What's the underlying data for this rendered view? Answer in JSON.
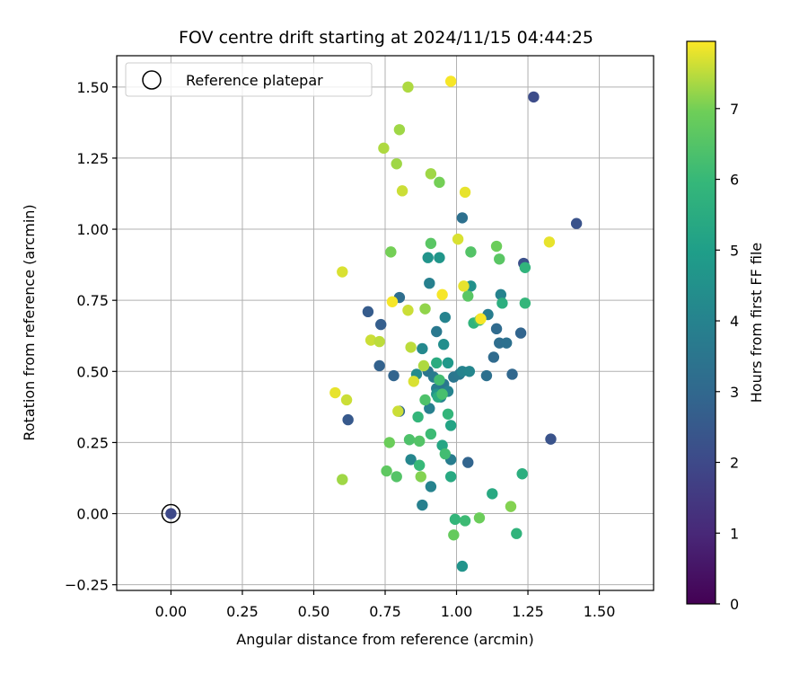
{
  "chart_data": {
    "type": "scatter",
    "title": "FOV centre drift starting at 2024/11/15 04:44:25",
    "xlabel": "Angular distance from reference (arcmin)",
    "ylabel": "Rotation from reference (arcmin)",
    "xlim": [
      -0.19,
      1.69
    ],
    "ylim": [
      -0.27,
      1.61
    ],
    "xticks": [
      0.0,
      0.25,
      0.5,
      0.75,
      1.0,
      1.25,
      1.5
    ],
    "xtick_labels": [
      "0.00",
      "0.25",
      "0.50",
      "0.75",
      "1.00",
      "1.25",
      "1.50"
    ],
    "yticks": [
      -0.25,
      0.0,
      0.25,
      0.5,
      0.75,
      1.0,
      1.25,
      1.5
    ],
    "ytick_labels": [
      "−0.25",
      "0.00",
      "0.25",
      "0.50",
      "0.75",
      "1.00",
      "1.25",
      "1.50"
    ],
    "grid": true,
    "legend": {
      "position": "top-left",
      "entries": [
        "Reference platepar"
      ]
    },
    "colormap": "viridis",
    "colorbar": {
      "label": "Hours from first FF file",
      "range": [
        0,
        7.95
      ],
      "ticks": [
        0,
        1,
        2,
        3,
        4,
        5,
        6,
        7
      ],
      "tick_labels": [
        "0",
        "1",
        "2",
        "3",
        "4",
        "5",
        "6",
        "7"
      ]
    },
    "reference_point": {
      "x": 0.0,
      "y": 0.0,
      "hours": 2.0
    },
    "points": [
      [
        1.27,
        1.465,
        2.1
      ],
      [
        1.42,
        1.02,
        2.3
      ],
      [
        1.235,
        0.88,
        2.2
      ],
      [
        1.33,
        0.262,
        2.3
      ],
      [
        0.62,
        0.33,
        2.5
      ],
      [
        0.69,
        0.71,
        2.6
      ],
      [
        0.735,
        0.665,
        2.7
      ],
      [
        0.73,
        0.52,
        2.8
      ],
      [
        0.78,
        0.485,
        2.9
      ],
      [
        0.8,
        0.36,
        3.0
      ],
      [
        0.8,
        0.76,
        3.2
      ],
      [
        1.02,
        1.04,
        3.3
      ],
      [
        1.14,
        0.65,
        3.1
      ],
      [
        1.15,
        0.6,
        3.2
      ],
      [
        1.175,
        0.6,
        3.3
      ],
      [
        1.195,
        0.49,
        3.0
      ],
      [
        1.225,
        0.635,
        2.9
      ],
      [
        1.13,
        0.55,
        3.1
      ],
      [
        1.105,
        0.485,
        3.3
      ],
      [
        1.04,
        0.18,
        2.9
      ],
      [
        0.93,
        0.64,
        3.6
      ],
      [
        0.96,
        0.69,
        4.0
      ],
      [
        0.9,
        0.5,
        3.5
      ],
      [
        0.92,
        0.48,
        3.7
      ],
      [
        0.93,
        0.44,
        3.8
      ],
      [
        0.945,
        0.41,
        3.9
      ],
      [
        0.955,
        0.455,
        3.6
      ],
      [
        0.97,
        0.43,
        4.0
      ],
      [
        0.98,
        0.19,
        3.8
      ],
      [
        0.99,
        0.48,
        3.5
      ],
      [
        1.01,
        0.49,
        3.6
      ],
      [
        1.02,
        0.5,
        4.0
      ],
      [
        1.045,
        0.5,
        4.1
      ],
      [
        0.905,
        0.37,
        3.9
      ],
      [
        0.905,
        0.81,
        3.9
      ],
      [
        0.88,
        0.58,
        4.2
      ],
      [
        0.86,
        0.49,
        4.3
      ],
      [
        0.84,
        0.19,
        4.1
      ],
      [
        0.88,
        0.03,
        3.9
      ],
      [
        0.91,
        0.095,
        4.0
      ],
      [
        1.11,
        0.7,
        3.8
      ],
      [
        1.155,
        0.77,
        4.0
      ],
      [
        1.05,
        0.8,
        4.5
      ],
      [
        0.9,
        0.9,
        4.6
      ],
      [
        0.94,
        0.9,
        4.7
      ],
      [
        0.955,
        0.595,
        4.4
      ],
      [
        0.93,
        0.42,
        4.6
      ],
      [
        0.97,
        0.53,
        4.8
      ],
      [
        0.98,
        0.31,
        5.2
      ],
      [
        0.98,
        0.13,
        5.4
      ],
      [
        0.93,
        0.53,
        5.5
      ],
      [
        0.95,
        0.24,
        5.3
      ],
      [
        0.935,
        0.41,
        5.5
      ],
      [
        1.125,
        0.07,
        5.4
      ],
      [
        1.23,
        0.14,
        5.6
      ],
      [
        1.16,
        0.74,
        5.6
      ],
      [
        1.06,
        0.67,
        5.8
      ],
      [
        1.24,
        0.74,
        5.9
      ],
      [
        1.24,
        0.865,
        5.8
      ],
      [
        0.97,
        0.35,
        5.9
      ],
      [
        0.865,
        0.34,
        5.9
      ],
      [
        0.87,
        0.17,
        6.0
      ],
      [
        0.91,
        0.28,
        6.1
      ],
      [
        0.96,
        0.21,
        6.2
      ],
      [
        0.94,
        0.47,
        6.2
      ],
      [
        0.95,
        0.42,
        6.3
      ],
      [
        0.89,
        0.4,
        6.4
      ],
      [
        0.835,
        0.26,
        6.4
      ],
      [
        0.87,
        0.255,
        6.5
      ],
      [
        0.79,
        0.13,
        6.5
      ],
      [
        0.755,
        0.15,
        6.7
      ],
      [
        0.765,
        0.25,
        6.9
      ],
      [
        0.91,
        0.95,
        6.6
      ],
      [
        1.05,
        0.92,
        6.5
      ],
      [
        1.15,
        0.895,
        6.6
      ],
      [
        1.14,
        0.94,
        6.9
      ],
      [
        1.04,
        0.765,
        6.6
      ],
      [
        1.21,
        -0.07,
        5.8
      ],
      [
        0.995,
        -0.02,
        5.9
      ],
      [
        1.03,
        -0.025,
        6.1
      ],
      [
        0.99,
        -0.075,
        6.8
      ],
      [
        1.08,
        -0.015,
        6.9
      ],
      [
        1.19,
        0.025,
        7.1
      ],
      [
        1.02,
        -0.185,
        4.6
      ],
      [
        0.875,
        0.13,
        7.1
      ],
      [
        0.77,
        0.92,
        7.0
      ],
      [
        0.79,
        1.23,
        7.3
      ],
      [
        0.745,
        1.285,
        7.4
      ],
      [
        0.8,
        1.35,
        7.3
      ],
      [
        0.83,
        1.5,
        7.4
      ],
      [
        0.89,
        0.72,
        7.2
      ],
      [
        0.885,
        0.52,
        7.4
      ],
      [
        0.84,
        0.585,
        7.5
      ],
      [
        0.83,
        0.715,
        7.6
      ],
      [
        0.85,
        0.465,
        7.7
      ],
      [
        0.795,
        0.36,
        7.6
      ],
      [
        0.7,
        0.61,
        7.6
      ],
      [
        0.73,
        0.605,
        7.5
      ],
      [
        0.775,
        0.745,
        7.9
      ],
      [
        0.81,
        1.135,
        7.6
      ],
      [
        0.91,
        1.195,
        7.3
      ],
      [
        0.94,
        1.165,
        7.0
      ],
      [
        0.98,
        1.52,
        7.9
      ],
      [
        1.03,
        1.13,
        7.8
      ],
      [
        1.005,
        0.965,
        7.7
      ],
      [
        1.025,
        0.8,
        7.8
      ],
      [
        0.95,
        0.77,
        7.9
      ],
      [
        1.08,
        0.68,
        6.2
      ],
      [
        1.085,
        0.685,
        7.9
      ],
      [
        1.325,
        0.955,
        7.8
      ],
      [
        0.575,
        0.425,
        7.8
      ],
      [
        0.6,
        0.85,
        7.7
      ],
      [
        0.615,
        0.4,
        7.6
      ],
      [
        0.6,
        0.12,
        7.3
      ]
    ]
  }
}
